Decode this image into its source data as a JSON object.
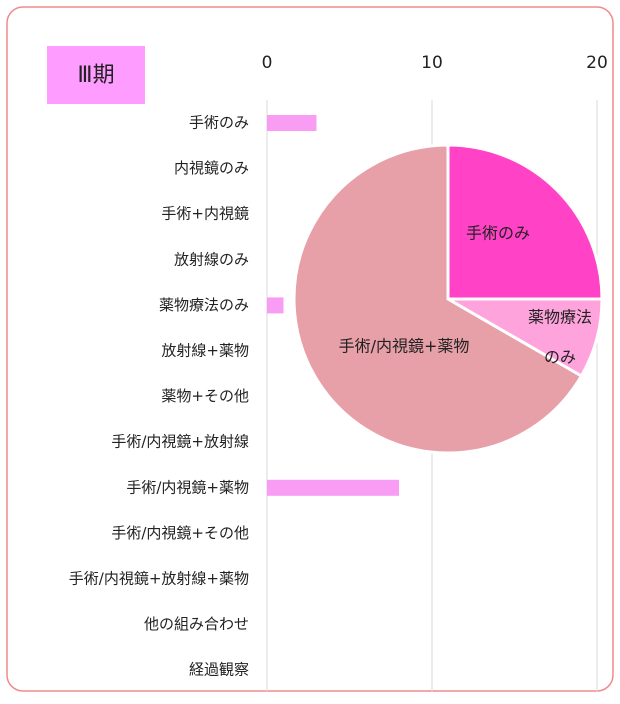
{
  "chart_data": [
    {
      "type": "bar",
      "orientation": "horizontal",
      "title": "Ⅲ期",
      "categories": [
        "手術のみ",
        "内視鏡のみ",
        "手術+内視鏡",
        "放射線のみ",
        "薬物療法のみ",
        "放射線+薬物",
        "薬物+その他",
        "手術/内視鏡+放射線",
        "手術/内視鏡+薬物",
        "手術/内視鏡+その他",
        "手術/内視鏡+放射線+薬物",
        "他の組み合わせ",
        "経過観察"
      ],
      "values": [
        3,
        0,
        0,
        0,
        1,
        0,
        0,
        0,
        8,
        0,
        0,
        0,
        0
      ],
      "color": "#f99cf3",
      "xlim": [
        0,
        20
      ],
      "xticks": [
        0,
        10,
        20
      ],
      "grid": true
    },
    {
      "type": "pie",
      "labels": [
        [
          "手術のみ"
        ],
        [
          "薬物療法",
          "のみ"
        ],
        [
          "手術/内視鏡+薬物"
        ]
      ],
      "values": [
        3,
        1,
        8
      ],
      "colors": [
        "#ff42c6",
        "#ffa3dc",
        "#e8a0a8"
      ]
    }
  ]
}
